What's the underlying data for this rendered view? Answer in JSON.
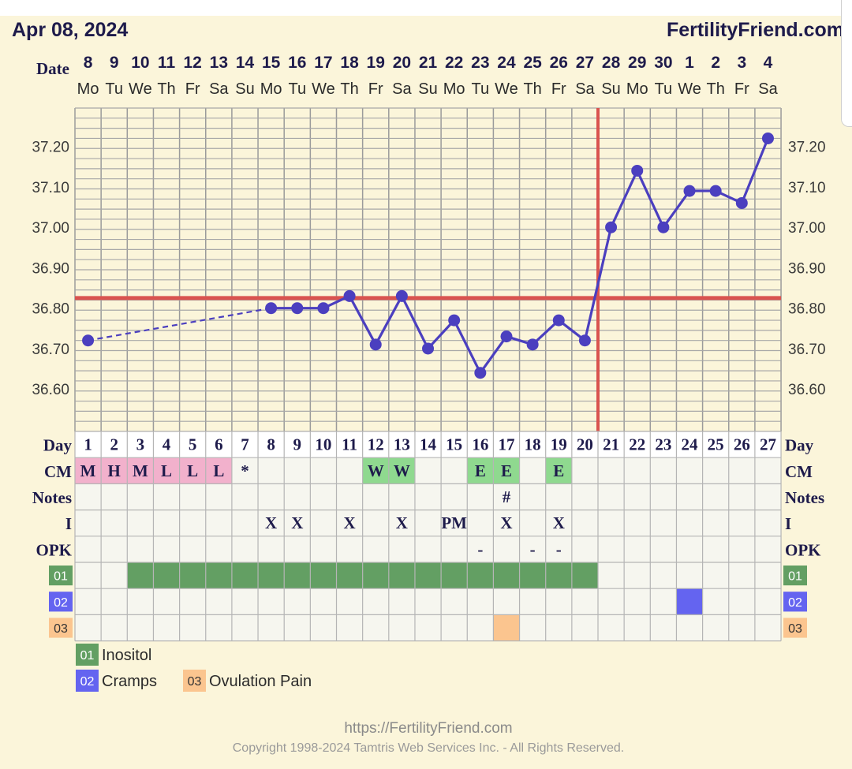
{
  "header": {
    "chart_date": "Apr 08, 2024",
    "site": "FertilityFriend.com"
  },
  "row_labels": {
    "date": "Date",
    "day": "Day",
    "cm": "CM",
    "notes": "Notes",
    "i": "I",
    "opk": "OPK"
  },
  "dates": [
    "8",
    "9",
    "10",
    "11",
    "12",
    "13",
    "14",
    "15",
    "16",
    "17",
    "18",
    "19",
    "20",
    "21",
    "22",
    "23",
    "24",
    "25",
    "26",
    "27",
    "28",
    "29",
    "30",
    "1",
    "2",
    "3",
    "4"
  ],
  "weekdays": [
    "Mo",
    "Tu",
    "We",
    "Th",
    "Fr",
    "Sa",
    "Su",
    "Mo",
    "Tu",
    "We",
    "Th",
    "Fr",
    "Sa",
    "Su",
    "Mo",
    "Tu",
    "We",
    "Th",
    "Fr",
    "Sa",
    "Su",
    "Mo",
    "Tu",
    "We",
    "Th",
    "Fr",
    "Sa"
  ],
  "cycle_days": [
    "1",
    "2",
    "3",
    "4",
    "5",
    "6",
    "7",
    "8",
    "9",
    "10",
    "11",
    "12",
    "13",
    "14",
    "15",
    "16",
    "17",
    "18",
    "19",
    "20",
    "21",
    "22",
    "23",
    "24",
    "25",
    "26",
    "27"
  ],
  "cm_row": [
    "M",
    "H",
    "M",
    "L",
    "L",
    "L",
    "*",
    "",
    "",
    "",
    "",
    "W",
    "W",
    "",
    "",
    "E",
    "E",
    "",
    "E",
    "",
    "",
    "",
    "",
    "",
    "",
    "",
    ""
  ],
  "notes_row": [
    "",
    "",
    "",
    "",
    "",
    "",
    "",
    "",
    "",
    "",
    "",
    "",
    "",
    "",
    "",
    "",
    "#",
    "",
    "",
    "",
    "",
    "",
    "",
    "",
    "",
    "",
    ""
  ],
  "i_row": [
    "",
    "",
    "",
    "",
    "",
    "",
    "",
    "X",
    "X",
    "",
    "X",
    "",
    "X",
    "",
    "PM",
    "",
    "X",
    "",
    "X",
    "",
    "",
    "",
    "",
    "",
    "",
    "",
    ""
  ],
  "opk_row": [
    "",
    "",
    "",
    "",
    "",
    "",
    "",
    "",
    "",
    "",
    "",
    "",
    "",
    "",
    "",
    "-",
    "",
    "-",
    "-",
    "",
    "",
    "",
    "",
    "",
    "",
    "",
    ""
  ],
  "chart_data": {
    "type": "line",
    "title": "",
    "xlabel": "",
    "ylabel": "",
    "x": [
      1,
      2,
      3,
      4,
      5,
      6,
      7,
      8,
      9,
      10,
      11,
      12,
      13,
      14,
      15,
      16,
      17,
      18,
      19,
      20,
      21,
      22,
      23,
      24,
      25,
      26,
      27
    ],
    "series": [
      {
        "values": [
          36.72,
          null,
          null,
          null,
          null,
          null,
          null,
          36.8,
          36.8,
          36.8,
          36.83,
          36.71,
          36.83,
          36.7,
          36.77,
          36.64,
          36.73,
          36.71,
          36.77,
          36.72,
          37.0,
          37.14,
          37.0,
          37.09,
          37.09,
          37.06,
          37.22
        ],
        "color": "#4b3fbf",
        "missing_segment_style": "dashed"
      }
    ],
    "y_ticks": [
      "36.60",
      "36.70",
      "36.80",
      "36.90",
      "37.00",
      "37.10",
      "37.20"
    ],
    "ylim": [
      36.495,
      37.295
    ],
    "coverline": 36.825,
    "ovulation_day": 20,
    "grid": true,
    "coverline_color": "#d9534f",
    "ovulation_line_color": "#d9534f"
  },
  "custom_rows": [
    {
      "code": "01",
      "name": "Inositol",
      "color": "#639f63",
      "days": [
        3,
        4,
        5,
        6,
        7,
        8,
        9,
        10,
        11,
        12,
        13,
        14,
        15,
        16,
        17,
        18,
        19,
        20
      ]
    },
    {
      "code": "02",
      "name": "Cramps",
      "color": "#6464f0",
      "days": [
        24
      ]
    },
    {
      "code": "03",
      "name": "Ovulation Pain",
      "color": "#fbc58f",
      "days": [
        17
      ]
    }
  ],
  "footer": {
    "url": "https://FertilityFriend.com",
    "copyright": "Copyright 1998-2024 Tamtris Web Services Inc. - All Rights Reserved."
  }
}
